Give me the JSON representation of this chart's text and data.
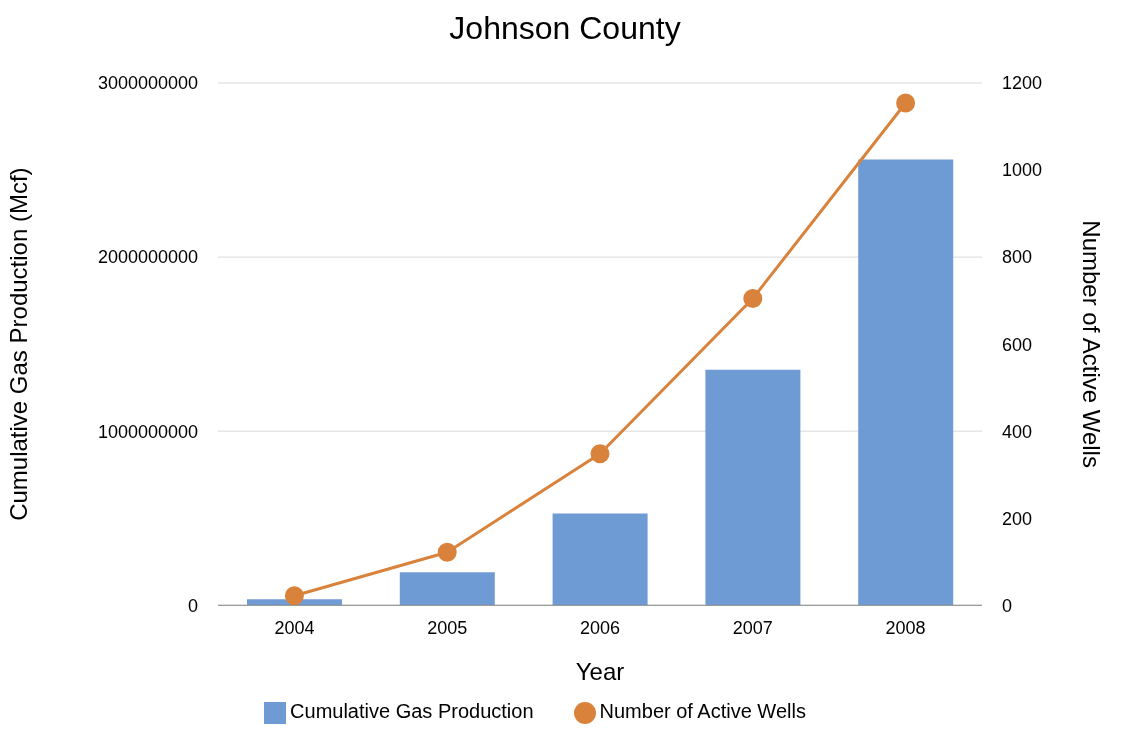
{
  "chart_data": {
    "type": "bar",
    "title": "Johnson County",
    "xlabel": "Year",
    "ylabel": "Cumulative Gas Production (Mcf)",
    "y2label": "Number of Active Wells",
    "categories": [
      "2004",
      "2005",
      "2006",
      "2007",
      "2008"
    ],
    "series": [
      {
        "name": "Cumulative Gas Production",
        "color": "#6f9bd4",
        "values": [
          35000000,
          190000000,
          527000000,
          1353000000,
          2560000000
        ]
      },
      {
        "name": "Number of Active Wells",
        "type": "line",
        "axis": "y2",
        "color": "#d9823b",
        "marker": "circle",
        "values": [
          22,
          122,
          348,
          705,
          1154
        ]
      }
    ],
    "ylim": [
      0,
      3000000000
    ],
    "yticks": [
      0,
      1000000000,
      2000000000,
      3000000000
    ],
    "y2lim": [
      0,
      1200
    ],
    "y2ticks": [
      0,
      200,
      400,
      600,
      800,
      1000,
      1200
    ],
    "grid": "y",
    "legend": "bottom"
  }
}
